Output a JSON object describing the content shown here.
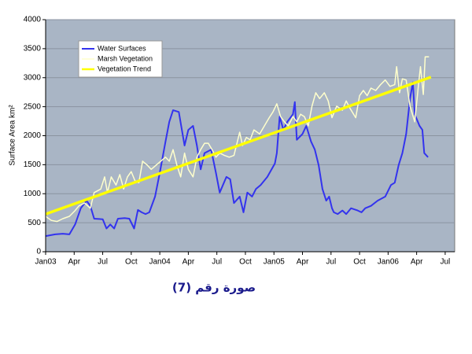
{
  "chart_data": {
    "type": "line",
    "ylabel": "Surface Area km²",
    "caption": "صورة رقم (7)",
    "xlim": [
      0,
      43
    ],
    "ylim": [
      0,
      4000
    ],
    "yticks": [
      0,
      500,
      1000,
      1500,
      2000,
      2500,
      3000,
      3500,
      4000
    ],
    "xticks": [
      {
        "value": 0,
        "label": "Jan03"
      },
      {
        "value": 3,
        "label": "Apr"
      },
      {
        "value": 6,
        "label": "Jul"
      },
      {
        "value": 9,
        "label": "Oct"
      },
      {
        "value": 12,
        "label": "Jan04"
      },
      {
        "value": 15,
        "label": "Apr"
      },
      {
        "value": 18,
        "label": "Jul"
      },
      {
        "value": 21,
        "label": "Oct"
      },
      {
        "value": 24,
        "label": "Jan05"
      },
      {
        "value": 27,
        "label": "Apr"
      },
      {
        "value": 30,
        "label": "Jul"
      },
      {
        "value": 33,
        "label": "Oct"
      },
      {
        "value": 36,
        "label": "Jan06"
      },
      {
        "value": 39,
        "label": "Apr"
      },
      {
        "value": 42,
        "label": "Jul"
      }
    ],
    "grid": true,
    "legend": "upper left",
    "series": [
      {
        "name": "Water Surfaces",
        "color": "#3333ee",
        "width": 2,
        "x": [
          0,
          1.0,
          1.8,
          2.5,
          3.1,
          3.7,
          4.3,
          4.7,
          5.1,
          6.0,
          6.4,
          6.8,
          7.2,
          7.6,
          8.3,
          8.8,
          9.3,
          9.7,
          10.1,
          10.5,
          10.9,
          11.5,
          12.0,
          12.6,
          13.0,
          13.4,
          14.0,
          14.6,
          15.0,
          15.5,
          15.9,
          16.3,
          16.7,
          17.4,
          17.9,
          18.3,
          19.0,
          19.4,
          19.8,
          20.4,
          20.8,
          21.2,
          21.7,
          22.1,
          22.6,
          23.3,
          24.1,
          24.3,
          24.6,
          25.0,
          25.4,
          26.0,
          26.2,
          26.4,
          27.0,
          27.4,
          27.9,
          28.3,
          28.7,
          29.1,
          29.5,
          29.8,
          30.1,
          30.3,
          30.7,
          31.2,
          31.6,
          32.1,
          32.8,
          33.2,
          33.6,
          34.2,
          34.9,
          35.7,
          36.3,
          36.7,
          37.1,
          37.5,
          37.9,
          38.3,
          38.6,
          38.8,
          39.3,
          39.6,
          39.8,
          40.2
        ],
        "values": [
          270,
          300,
          310,
          300,
          470,
          750,
          880,
          790,
          570,
          560,
          400,
          470,
          400,
          570,
          580,
          570,
          400,
          720,
          680,
          650,
          680,
          950,
          1360,
          1900,
          2240,
          2440,
          2410,
          1830,
          2100,
          2170,
          1830,
          1420,
          1700,
          1760,
          1360,
          1020,
          1290,
          1250,
          840,
          950,
          680,
          1020,
          950,
          1080,
          1150,
          1290,
          1520,
          1700,
          2330,
          2100,
          2240,
          2370,
          2580,
          1930,
          2030,
          2170,
          1900,
          1760,
          1490,
          1080,
          880,
          950,
          750,
          680,
          650,
          710,
          650,
          750,
          710,
          680,
          750,
          790,
          880,
          950,
          1150,
          1190,
          1490,
          1700,
          2030,
          2640,
          2920,
          2370,
          2170,
          2100,
          1700,
          1630
        ]
      },
      {
        "name": "Marsh Vegetation",
        "color": "#ffffcc",
        "width": 1.5,
        "x": [
          0,
          0.6,
          1.2,
          1.8,
          2.5,
          3.1,
          3.5,
          4.1,
          4.7,
          5.1,
          5.8,
          6.2,
          6.5,
          6.9,
          7.4,
          7.8,
          8.2,
          8.6,
          9.0,
          9.4,
          9.8,
          10.2,
          10.7,
          11.1,
          11.6,
          12.1,
          12.6,
          13.0,
          13.4,
          13.8,
          14.2,
          14.6,
          15.0,
          15.5,
          15.9,
          16.3,
          16.7,
          17.1,
          17.5,
          17.9,
          18.3,
          18.8,
          19.3,
          19.8,
          20.4,
          20.7,
          21.1,
          21.5,
          21.9,
          22.5,
          23.0,
          23.5,
          23.9,
          24.3,
          24.7,
          25.1,
          25.5,
          26.0,
          26.4,
          26.8,
          27.2,
          27.6,
          28.0,
          28.4,
          28.8,
          29.3,
          29.7,
          30.1,
          30.6,
          31.2,
          31.6,
          32.0,
          32.6,
          33.0,
          33.4,
          33.8,
          34.2,
          34.7,
          35.2,
          35.7,
          36.2,
          36.7,
          36.9,
          37.2,
          37.5,
          37.9,
          38.3,
          38.8,
          39.2,
          39.4,
          39.7,
          39.9,
          40.3
        ],
        "values": [
          610,
          540,
          520,
          570,
          610,
          710,
          790,
          840,
          750,
          1020,
          1080,
          1290,
          1020,
          1290,
          1150,
          1330,
          1080,
          1290,
          1380,
          1220,
          1190,
          1560,
          1490,
          1420,
          1490,
          1560,
          1630,
          1560,
          1760,
          1490,
          1290,
          1700,
          1420,
          1290,
          1630,
          1760,
          1870,
          1870,
          1760,
          1630,
          1700,
          1660,
          1630,
          1660,
          2060,
          1830,
          1970,
          1930,
          2100,
          2030,
          2170,
          2310,
          2410,
          2550,
          2330,
          2240,
          2170,
          2330,
          2240,
          2370,
          2330,
          2170,
          2510,
          2740,
          2640,
          2740,
          2600,
          2310,
          2510,
          2440,
          2600,
          2470,
          2310,
          2690,
          2780,
          2690,
          2820,
          2780,
          2880,
          2960,
          2850,
          2880,
          3190,
          2740,
          2980,
          2960,
          2510,
          2240,
          2880,
          3190,
          2710,
          3360,
          3360
        ]
      },
      {
        "name": "Vegetation Trend",
        "color": "#ffff00",
        "width": 3.5,
        "x": [
          0,
          40.5
        ],
        "values": [
          650,
          3010
        ]
      }
    ]
  }
}
